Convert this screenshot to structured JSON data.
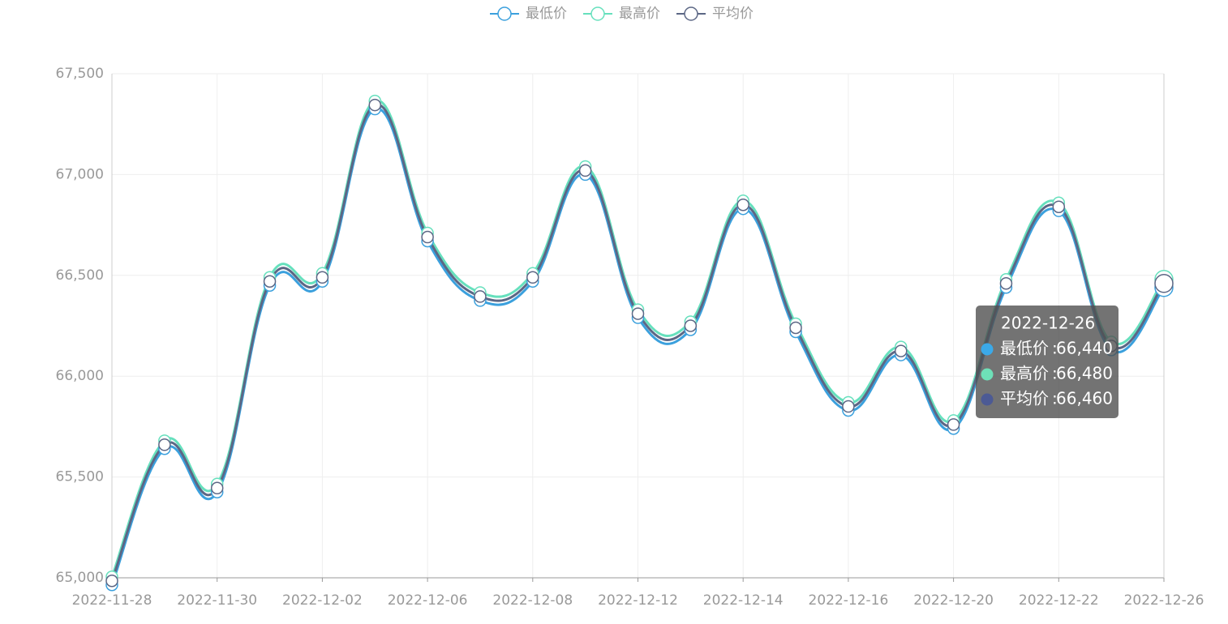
{
  "chart_data": {
    "type": "line",
    "smooth": true,
    "categories": [
      "2022-11-28",
      null,
      "2022-11-30",
      null,
      "2022-12-02",
      null,
      "2022-12-06",
      null,
      "2022-12-08",
      null,
      "2022-12-12",
      null,
      "2022-12-14",
      null,
      "2022-12-16",
      null,
      "2022-12-20",
      null,
      "2022-12-22",
      null,
      "2022-12-26"
    ],
    "series": [
      {
        "name": "最低价",
        "color": "#3ba0dd",
        "values": [
          64965,
          65640,
          65425,
          66450,
          66470,
          67325,
          66670,
          66375,
          66470,
          67000,
          66290,
          66230,
          66830,
          66220,
          65830,
          66105,
          65740,
          66440,
          66820,
          66130,
          66440
        ]
      },
      {
        "name": "最高价",
        "color": "#66e0bd",
        "values": [
          65005,
          65680,
          65465,
          66490,
          66510,
          67365,
          66710,
          66415,
          66510,
          67040,
          66330,
          66270,
          66870,
          66260,
          65870,
          66145,
          65780,
          66480,
          66860,
          66170,
          66480
        ]
      },
      {
        "name": "平均价",
        "color": "#5c6785",
        "values": [
          64985,
          65660,
          65445,
          66470,
          66490,
          67345,
          66690,
          66395,
          66490,
          67020,
          66310,
          66250,
          66850,
          66240,
          65850,
          66125,
          65760,
          66460,
          66840,
          66150,
          66460
        ]
      }
    ],
    "ylim": [
      65000,
      67500
    ],
    "yticks": [
      {
        "value": 65000,
        "label": "65,000"
      },
      {
        "value": 65500,
        "label": "65,500"
      },
      {
        "value": 66000,
        "label": "66,000"
      },
      {
        "value": 66500,
        "label": "66,500"
      },
      {
        "value": 67000,
        "label": "67,000"
      },
      {
        "value": 67500,
        "label": "67,500"
      }
    ],
    "grid": true,
    "legend": "top",
    "tooltip": {
      "title": "2022-12-26",
      "labels": [
        "66,440",
        "66,480",
        "66,460"
      ],
      "dot_colors": [
        "#3ba9e8",
        "#6ee0b8",
        "#4c5a94"
      ]
    }
  }
}
